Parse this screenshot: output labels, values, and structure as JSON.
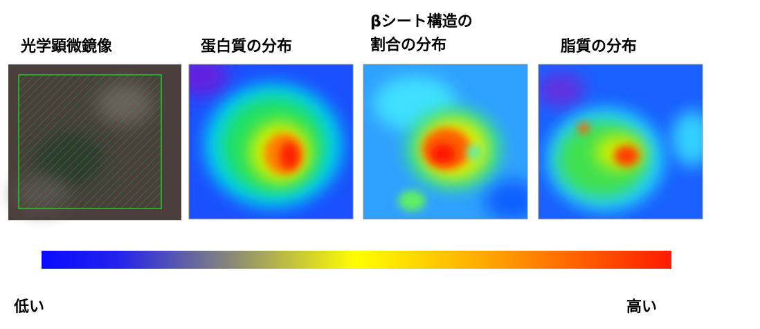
{
  "panels": [
    {
      "label": [
        "光学顕微鏡像"
      ]
    },
    {
      "label": [
        "蛋白質の分布"
      ]
    },
    {
      "label": [
        "βシート構造の",
        "割合の分布"
      ]
    },
    {
      "label": [
        "脂質の分布"
      ]
    }
  ],
  "colorbar": {
    "low": "低い",
    "high": "高い"
  }
}
